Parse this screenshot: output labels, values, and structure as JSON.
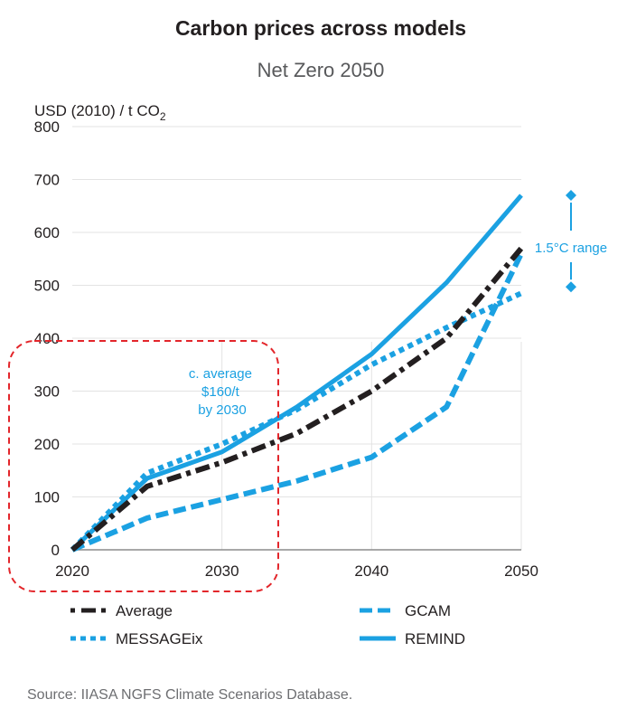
{
  "chart_data": {
    "type": "line",
    "title": "Carbon prices across models",
    "subtitle": "Net Zero 2050",
    "ylabel_main": "USD (2010) / t CO",
    "ylabel_sub": "2",
    "xlim": [
      2020,
      2050
    ],
    "ylim": [
      0,
      800
    ],
    "x_ticks": [
      2020,
      2030,
      2040,
      2050
    ],
    "y_ticks": [
      0,
      100,
      200,
      300,
      400,
      500,
      600,
      700,
      800
    ],
    "grid": "horizontal",
    "series": [
      {
        "name": "Average",
        "color": "#231f20",
        "style": "dashdot",
        "x": [
          2020,
          2025,
          2030,
          2035,
          2040,
          2045,
          2050
        ],
        "y": [
          0,
          120,
          165,
          220,
          300,
          400,
          570
        ]
      },
      {
        "name": "MESSAGEix",
        "color": "#1ba1e2",
        "style": "dotted",
        "x": [
          2020,
          2025,
          2030,
          2035,
          2040,
          2045,
          2050
        ],
        "y": [
          0,
          145,
          200,
          265,
          350,
          420,
          485
        ]
      },
      {
        "name": "GCAM",
        "color": "#1ba1e2",
        "style": "dashed",
        "x": [
          2020,
          2025,
          2030,
          2035,
          2040,
          2045,
          2050
        ],
        "y": [
          0,
          60,
          95,
          130,
          175,
          270,
          560
        ]
      },
      {
        "name": "REMIND",
        "color": "#1ba1e2",
        "style": "solid",
        "x": [
          2020,
          2025,
          2030,
          2035,
          2040,
          2045,
          2050
        ],
        "y": [
          0,
          135,
          185,
          270,
          370,
          505,
          670
        ]
      }
    ],
    "annotations": {
      "range_label": "1.5°C range",
      "range_y": [
        480,
        670
      ],
      "highlight_lines": [
        "c. average",
        "$160/t",
        "by 2030"
      ],
      "highlight_color": "#e3262b"
    },
    "legend_position": "bottom",
    "source": "Source: IIASA NGFS Climate Scenarios Database."
  }
}
